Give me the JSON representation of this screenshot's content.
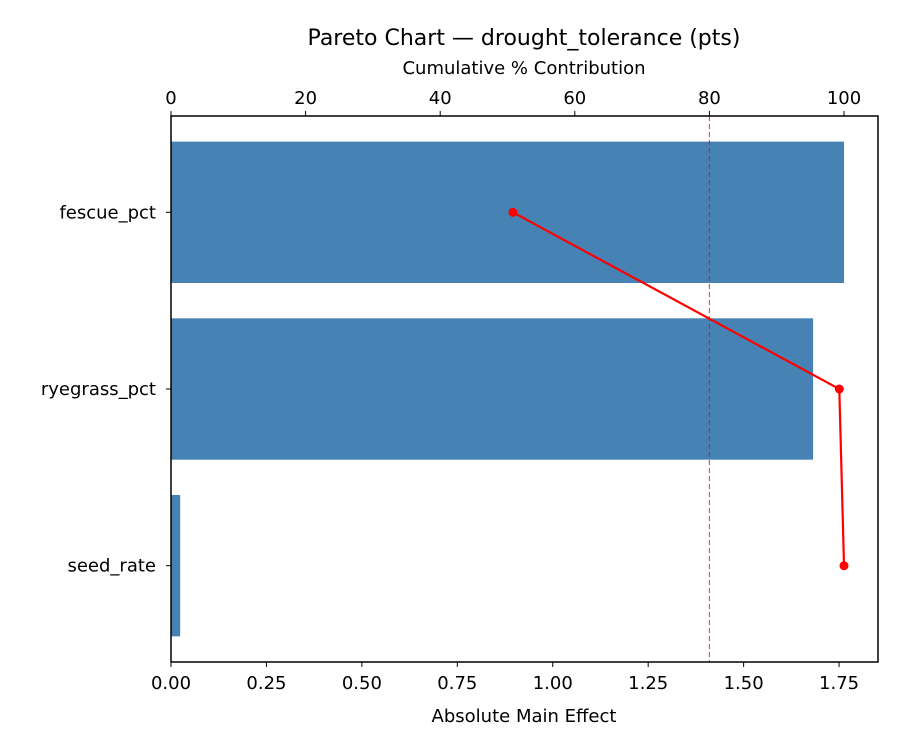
{
  "chart_data": {
    "type": "bar",
    "orientation": "horizontal",
    "title": "Pareto Chart — drought_tolerance (pts)",
    "xlabel": "Absolute Main Effect",
    "x2label": "Cumulative % Contribution",
    "categories": [
      "fescue_pct",
      "ryegrass_pct",
      "seed_rate"
    ],
    "values": [
      1.763,
      1.682,
      0.024
    ],
    "cumulative_pct": [
      50.8,
      99.3,
      100.0
    ],
    "xlim": [
      0,
      1.852
    ],
    "x2lim": [
      0,
      105.05
    ],
    "xticks": [
      "0.00",
      "0.25",
      "0.50",
      "0.75",
      "1.00",
      "1.25",
      "1.50",
      "1.75"
    ],
    "x2ticks": [
      "0",
      "20",
      "40",
      "60",
      "80",
      "100"
    ],
    "threshold_pct": 80,
    "grid": false,
    "colors": {
      "bar": "#4682b4",
      "cumulative": "#ff0000",
      "threshold": "#ff0000"
    }
  }
}
